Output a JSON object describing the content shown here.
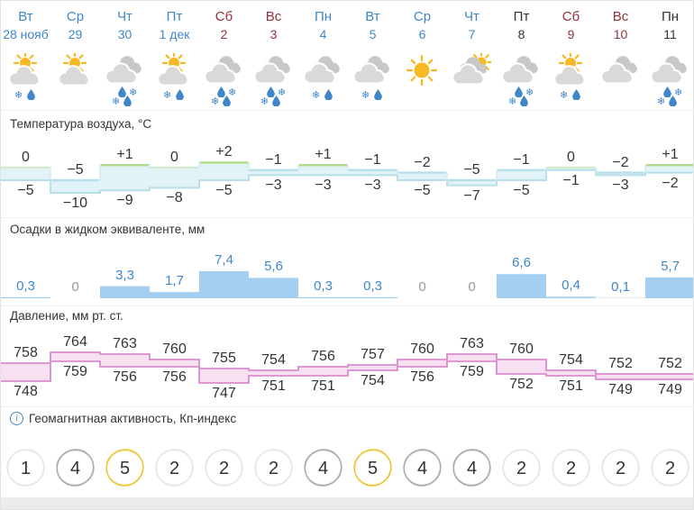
{
  "sections": {
    "temperature": "Температура воздуха, °C",
    "precipitation": "Осадки в жидком эквиваленте, мм",
    "pressure": "Давление, мм рт. ст.",
    "geomagnetic": "Геомагнитная активность, Кп-индекс"
  },
  "icons": {
    "info": "info-icon",
    "snowflake_glyph": "❄"
  },
  "colors": {
    "link_blue": "#3f87c9",
    "weekend_red": "#952f3a",
    "plain_black": "#333333",
    "temp_fill": "#e1f3f7",
    "temp_edge_blue": "#b7dfe9",
    "temp_edge_green": "#b4d98a",
    "temp_edge_zero": "#d5ead0",
    "precip_fill": "#a5cff0",
    "pressure_fill": "#f6e0f2",
    "pressure_line": "#d98ccc",
    "kp_low_ring": "#e3e3e3",
    "kp_mid_ring": "#a8a8a8",
    "kp_high_ring": "#eec32f",
    "sun": "#f6b823",
    "cloud_front": "#d9d9d9",
    "cloud_back": "#c8c8c8",
    "zero_gray": "#9a9a9a"
  },
  "days": [
    {
      "day": "Вт",
      "date": "28 нояб",
      "color": "blue",
      "sky": "suncloud",
      "precipIcon": "snowrain",
      "tmax": "0",
      "tmin": "−5",
      "precipLabel": "0,3",
      "pmax": "758",
      "pmin": "748",
      "kp": "1"
    },
    {
      "day": "Ср",
      "date": "29",
      "color": "blue",
      "sky": "suncloud",
      "precipIcon": "none",
      "tmax": "−5",
      "tmin": "−10",
      "precipLabel": "0",
      "pmax": "764",
      "pmin": "759",
      "kp": "4"
    },
    {
      "day": "Чт",
      "date": "30",
      "color": "blue",
      "sky": "cloud",
      "precipIcon": "sleet",
      "tmax": "+1",
      "tmin": "−9",
      "precipLabel": "3,3",
      "pmax": "763",
      "pmin": "756",
      "kp": "5"
    },
    {
      "day": "Пт",
      "date": "1 дек",
      "color": "blue",
      "sky": "suncloud",
      "precipIcon": "snowrain",
      "tmax": "0",
      "tmin": "−8",
      "precipLabel": "1,7",
      "pmax": "760",
      "pmin": "756",
      "kp": "2"
    },
    {
      "day": "Сб",
      "date": "2",
      "color": "red",
      "sky": "cloud",
      "precipIcon": "sleet",
      "tmax": "+2",
      "tmin": "−5",
      "precipLabel": "7,4",
      "pmax": "755",
      "pmin": "747",
      "kp": "2"
    },
    {
      "day": "Вс",
      "date": "3",
      "color": "red",
      "sky": "cloud",
      "precipIcon": "sleet",
      "tmax": "−1",
      "tmin": "−3",
      "precipLabel": "5,6",
      "pmax": "754",
      "pmin": "751",
      "kp": "2"
    },
    {
      "day": "Пн",
      "date": "4",
      "color": "blue",
      "sky": "cloud",
      "precipIcon": "snowrain",
      "tmax": "+1",
      "tmin": "−3",
      "precipLabel": "0,3",
      "pmax": "756",
      "pmin": "751",
      "kp": "4"
    },
    {
      "day": "Вт",
      "date": "5",
      "color": "blue",
      "sky": "cloud",
      "precipIcon": "snowrain",
      "tmax": "−1",
      "tmin": "−3",
      "precipLabel": "0,3",
      "pmax": "757",
      "pmin": "754",
      "kp": "5"
    },
    {
      "day": "Ср",
      "date": "6",
      "color": "blue",
      "sky": "sun",
      "precipIcon": "none",
      "tmax": "−2",
      "tmin": "−5",
      "precipLabel": "0",
      "pmax": "760",
      "pmin": "756",
      "kp": "4"
    },
    {
      "day": "Чт",
      "date": "7",
      "color": "blue",
      "sky": "cloudsun",
      "precipIcon": "none",
      "tmax": "−5",
      "tmin": "−7",
      "precipLabel": "0",
      "pmax": "763",
      "pmin": "759",
      "kp": "4"
    },
    {
      "day": "Пт",
      "date": "8",
      "color": "black",
      "sky": "cloud",
      "precipIcon": "sleet",
      "tmax": "−1",
      "tmin": "−5",
      "precipLabel": "6,6",
      "pmax": "760",
      "pmin": "752",
      "kp": "2"
    },
    {
      "day": "Сб",
      "date": "9",
      "color": "red",
      "sky": "suncloud",
      "precipIcon": "snowrain",
      "tmax": "0",
      "tmin": "−1",
      "precipLabel": "0,4",
      "pmax": "754",
      "pmin": "751",
      "kp": "2"
    },
    {
      "day": "Вс",
      "date": "10",
      "color": "red",
      "sky": "cloud",
      "precipIcon": "none",
      "tmax": "−2",
      "tmin": "−3",
      "precipLabel": "0,1",
      "pmax": "752",
      "pmin": "749",
      "kp": "2"
    },
    {
      "day": "Пн",
      "date": "11",
      "color": "black",
      "sky": "cloud",
      "precipIcon": "sleet",
      "tmax": "+1",
      "tmin": "−2",
      "precipLabel": "5,7",
      "pmax": "752",
      "pmin": "749",
      "kp": "2"
    }
  ],
  "chart_data": [
    {
      "type": "area-step",
      "title": "Температура воздуха, °C",
      "categories": [
        "Вт 28 нояб",
        "Ср 29",
        "Чт 30",
        "Пт 1 дек",
        "Сб 2",
        "Вс 3",
        "Пн 4",
        "Вт 5",
        "Ср 6",
        "Чт 7",
        "Пт 8",
        "Сб 9",
        "Вс 10",
        "Пн 11"
      ],
      "series": [
        {
          "name": "t_max",
          "values": [
            0,
            -5,
            1,
            0,
            2,
            -1,
            1,
            -1,
            -2,
            -5,
            -1,
            0,
            -2,
            1
          ]
        },
        {
          "name": "t_min",
          "values": [
            -5,
            -10,
            -9,
            -8,
            -5,
            -3,
            -3,
            -3,
            -5,
            -7,
            -5,
            -1,
            -3,
            -2
          ]
        }
      ],
      "ylim": [
        -10,
        2
      ],
      "unit": "°C"
    },
    {
      "type": "bar",
      "title": "Осадки в жидком эквиваленте, мм",
      "categories": [
        "Вт 28 нояб",
        "Ср 29",
        "Чт 30",
        "Пт 1 дек",
        "Сб 2",
        "Вс 3",
        "Пн 4",
        "Вт 5",
        "Ср 6",
        "Чт 7",
        "Пт 8",
        "Сб 9",
        "Вс 10",
        "Пн 11"
      ],
      "values": [
        0.3,
        0,
        3.3,
        1.7,
        7.4,
        5.6,
        0.3,
        0.3,
        0,
        0,
        6.6,
        0.4,
        0.1,
        5.7
      ],
      "ylim": [
        0,
        7.4
      ],
      "unit": "мм"
    },
    {
      "type": "area-step",
      "title": "Давление, мм рт. ст.",
      "categories": [
        "Вт 28 нояб",
        "Ср 29",
        "Чт 30",
        "Пт 1 дек",
        "Сб 2",
        "Вс 3",
        "Пн 4",
        "Вт 5",
        "Ср 6",
        "Чт 7",
        "Пт 8",
        "Сб 9",
        "Вс 10",
        "Пн 11"
      ],
      "series": [
        {
          "name": "p_max",
          "values": [
            758,
            764,
            763,
            760,
            755,
            754,
            756,
            757,
            760,
            763,
            760,
            754,
            752,
            752
          ]
        },
        {
          "name": "p_min",
          "values": [
            748,
            759,
            756,
            756,
            747,
            751,
            751,
            754,
            756,
            759,
            752,
            751,
            749,
            749
          ]
        }
      ],
      "ylim": [
        747,
        764
      ],
      "unit": "мм рт. ст."
    },
    {
      "type": "bar",
      "title": "Геомагнитная активность, Кп-индекс",
      "categories": [
        "Вт 28 нояб",
        "Ср 29",
        "Чт 30",
        "Пт 1 дек",
        "Сб 2",
        "Вс 3",
        "Пн 4",
        "Вт 5",
        "Ср 6",
        "Чт 7",
        "Пт 8",
        "Сб 9",
        "Вс 10",
        "Пн 11"
      ],
      "values": [
        1,
        4,
        5,
        2,
        2,
        2,
        4,
        5,
        4,
        4,
        2,
        2,
        2,
        2
      ],
      "ylim": [
        0,
        9
      ],
      "unit": "Кп"
    }
  ]
}
